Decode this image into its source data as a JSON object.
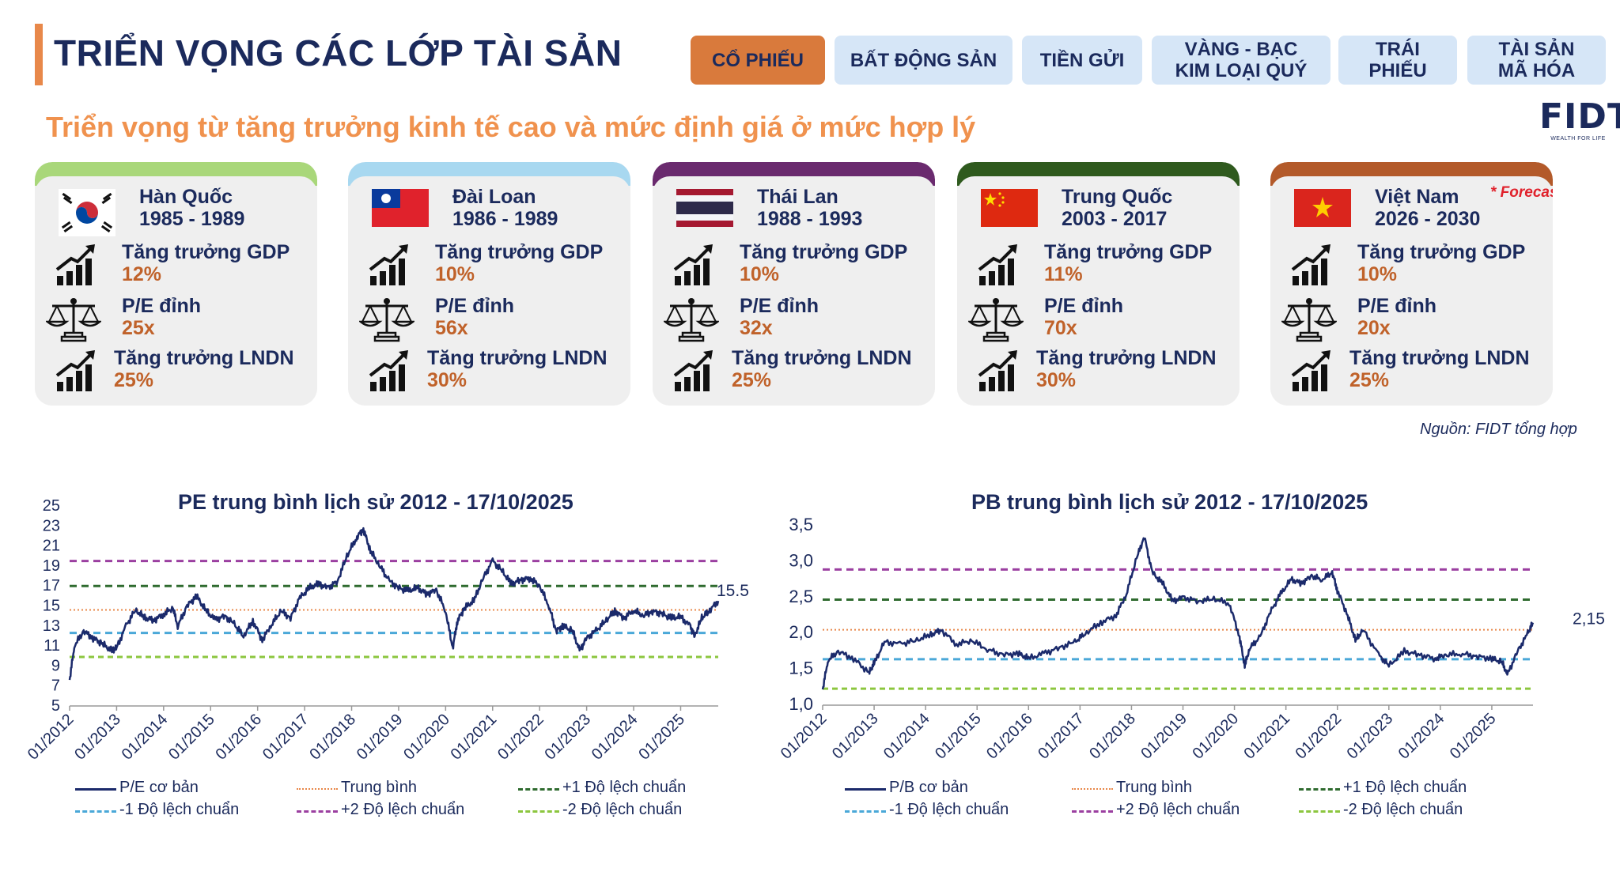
{
  "page": {
    "title": "TRIỂN VỌNG CÁC LỚP TÀI SẢN",
    "subtitle": "Triển vọng từ tăng trưởng kinh tế cao và mức định giá ở mức hợp lý",
    "source": "Nguồn: FIDT tổng hợp"
  },
  "logo": {
    "mark": "FIDT",
    "tagline": "WEALTH FOR LIFE"
  },
  "tabs": [
    {
      "label": "CỔ PHIẾU",
      "active": true
    },
    {
      "label": "BẤT ĐỘNG SẢN",
      "active": false
    },
    {
      "label": "TIỀN GỬI",
      "active": false
    },
    {
      "label": "VÀNG - BẠC\nKIM LOẠI QUÝ",
      "active": false
    },
    {
      "label": "TRÁI\nPHIẾU",
      "active": false
    },
    {
      "label": "TÀI SẢN\nMÃ HÓA",
      "active": false
    }
  ],
  "metric_labels": {
    "gdp": "Tăng trưởng GDP",
    "pe": "P/E đỉnh",
    "profit": "Tăng trưởng LNDN"
  },
  "countries": [
    {
      "name": "Hàn Quốc",
      "years": "1985 - 1989",
      "gdp": "12%",
      "pe": "25x",
      "profit": "25%",
      "cap_color": "#a9d77a",
      "flag": "korea-flag-icon",
      "forecast": ""
    },
    {
      "name": "Đài Loan",
      "years": "1986 - 1989",
      "gdp": "10%",
      "pe": "56x",
      "profit": "30%",
      "cap_color": "#a8d8f0",
      "flag": "taiwan-flag-icon",
      "forecast": ""
    },
    {
      "name": "Thái Lan",
      "years": "1988 - 1993",
      "gdp": "10%",
      "pe": "32x",
      "profit": "25%",
      "cap_color": "#6a2a6e",
      "flag": "thailand-flag-icon",
      "forecast": ""
    },
    {
      "name": "Trung Quốc",
      "years": "2003 - 2017",
      "gdp": "11%",
      "pe": "70x",
      "profit": "30%",
      "cap_color": "#2f5a1e",
      "flag": "china-flag-icon",
      "forecast": ""
    },
    {
      "name": "Việt Nam",
      "years": "2026 - 2030",
      "gdp": "10%",
      "pe": "20x",
      "profit": "25%",
      "cap_color": "#b35a2a",
      "flag": "vietnam-flag-icon",
      "forecast": "* Forecast"
    }
  ],
  "chart_data": [
    {
      "type": "line",
      "title": "PE trung bình lịch sử 2012 - 17/10/2025",
      "ylim": [
        5,
        25
      ],
      "yticks": [
        5,
        7,
        9,
        11,
        13,
        15,
        17,
        19,
        21,
        23,
        25
      ],
      "ytick_labels": [
        "5",
        "7",
        "9",
        "11",
        "13",
        "15",
        "17",
        "19",
        "21",
        "23",
        "25"
      ],
      "xlim": [
        2012.0,
        2025.8
      ],
      "xticks": [
        "01/2012",
        "01/2013",
        "01/2014",
        "01/2015",
        "01/2016",
        "01/2017",
        "01/2018",
        "01/2019",
        "01/2020",
        "01/2021",
        "01/2022",
        "01/2023",
        "01/2024",
        "01/2025"
      ],
      "end_label": "15.5",
      "series": [
        {
          "name": "P/E cơ bản",
          "color": "#1b2a6b",
          "x": [
            2012.0,
            2012.1,
            2012.3,
            2012.5,
            2012.7,
            2012.9,
            2013.0,
            2013.2,
            2013.4,
            2013.6,
            2013.8,
            2014.0,
            2014.2,
            2014.3,
            2014.5,
            2014.7,
            2014.9,
            2015.1,
            2015.3,
            2015.5,
            2015.7,
            2015.9,
            2016.1,
            2016.3,
            2016.5,
            2016.7,
            2016.9,
            2017.1,
            2017.3,
            2017.5,
            2017.7,
            2017.9,
            2018.1,
            2018.25,
            2018.4,
            2018.6,
            2018.8,
            2019.0,
            2019.2,
            2019.4,
            2019.6,
            2019.8,
            2020.0,
            2020.15,
            2020.25,
            2020.4,
            2020.6,
            2020.8,
            2021.0,
            2021.2,
            2021.4,
            2021.6,
            2021.8,
            2022.0,
            2022.2,
            2022.35,
            2022.5,
            2022.7,
            2022.85,
            2023.0,
            2023.2,
            2023.4,
            2023.6,
            2023.8,
            2024.0,
            2024.2,
            2024.4,
            2024.6,
            2024.8,
            2025.0,
            2025.2,
            2025.3,
            2025.45,
            2025.6,
            2025.8
          ],
          "y": [
            7.6,
            11.0,
            12.5,
            11.8,
            11.2,
            10.5,
            10.8,
            13.0,
            14.6,
            13.8,
            13.6,
            14.2,
            14.8,
            13.0,
            15.0,
            16.0,
            14.5,
            13.6,
            14.0,
            13.2,
            12.0,
            13.5,
            11.6,
            13.2,
            14.5,
            13.8,
            15.8,
            16.8,
            17.2,
            16.8,
            17.5,
            20.0,
            21.8,
            22.7,
            20.5,
            19.0,
            17.5,
            16.8,
            16.5,
            16.8,
            16.2,
            16.6,
            14.5,
            10.8,
            13.5,
            14.8,
            15.5,
            17.8,
            19.5,
            18.5,
            17.2,
            17.6,
            17.8,
            17.0,
            15.0,
            12.5,
            13.0,
            12.5,
            10.5,
            11.8,
            12.5,
            13.5,
            14.5,
            13.8,
            14.6,
            14.0,
            14.5,
            14.2,
            13.8,
            13.9,
            13.0,
            12.0,
            13.8,
            14.5,
            15.5
          ]
        },
        {
          "name": "Trung bình",
          "color": "#e8884a",
          "value": 14.6
        },
        {
          "name": "+1 Độ lệch chuẩn",
          "color": "#2f6b2f",
          "value": 17.0
        },
        {
          "name": "-1 Độ lệch chuẩn",
          "color": "#4aa8d8",
          "value": 12.3
        },
        {
          "name": "+2 Độ lệch chuẩn",
          "color": "#9b3fa0",
          "value": 19.5
        },
        {
          "name": "-2 Độ lệch chuẩn",
          "color": "#8cc63f",
          "value": 9.9
        }
      ]
    },
    {
      "type": "line",
      "title": "PB trung bình lịch sử 2012 - 17/10/2025",
      "ylim": [
        1.0,
        3.5
      ],
      "yticks": [
        1.0,
        1.5,
        2.0,
        2.5,
        3.0,
        3.5
      ],
      "ytick_labels": [
        "1,0",
        "1,5",
        "2,0",
        "2,5",
        "3,0",
        "3,5"
      ],
      "xlim": [
        2012.0,
        2025.8
      ],
      "xticks": [
        "01/2012",
        "01/2013",
        "01/2014",
        "01/2015",
        "01/2016",
        "01/2017",
        "01/2018",
        "01/2019",
        "01/2020",
        "01/2021",
        "01/2022",
        "01/2023",
        "01/2024",
        "01/2025"
      ],
      "end_label": "2,15",
      "series": [
        {
          "name": "P/B cơ bản",
          "color": "#1b2a6b",
          "x": [
            2012.0,
            2012.1,
            2012.3,
            2012.6,
            2012.9,
            2013.0,
            2013.2,
            2013.5,
            2013.8,
            2014.1,
            2014.3,
            2014.6,
            2014.9,
            2015.2,
            2015.5,
            2015.8,
            2016.0,
            2016.3,
            2016.6,
            2016.9,
            2017.1,
            2017.4,
            2017.7,
            2017.9,
            2018.1,
            2018.25,
            2018.4,
            2018.6,
            2018.8,
            2019.0,
            2019.3,
            2019.6,
            2019.9,
            2020.1,
            2020.2,
            2020.3,
            2020.5,
            2020.7,
            2020.9,
            2021.1,
            2021.3,
            2021.5,
            2021.7,
            2021.9,
            2022.0,
            2022.2,
            2022.35,
            2022.5,
            2022.8,
            2023.0,
            2023.3,
            2023.6,
            2023.9,
            2024.1,
            2024.4,
            2024.7,
            2025.0,
            2025.2,
            2025.3,
            2025.5,
            2025.7,
            2025.8
          ],
          "y": [
            1.22,
            1.62,
            1.75,
            1.65,
            1.45,
            1.58,
            1.88,
            1.85,
            1.9,
            1.98,
            2.05,
            1.85,
            1.9,
            1.78,
            1.7,
            1.72,
            1.65,
            1.72,
            1.8,
            1.88,
            2.0,
            2.15,
            2.25,
            2.55,
            3.05,
            3.35,
            2.85,
            2.7,
            2.45,
            2.5,
            2.45,
            2.48,
            2.42,
            1.95,
            1.55,
            1.8,
            1.95,
            2.3,
            2.55,
            2.75,
            2.7,
            2.8,
            2.75,
            2.85,
            2.6,
            2.25,
            1.9,
            2.05,
            1.7,
            1.55,
            1.75,
            1.7,
            1.65,
            1.7,
            1.72,
            1.68,
            1.65,
            1.6,
            1.42,
            1.75,
            2.0,
            2.15
          ]
        },
        {
          "name": "Trung bình",
          "color": "#e8884a",
          "value": 2.05
        },
        {
          "name": "+1 Độ lệch chuẩn",
          "color": "#2f6b2f",
          "value": 2.47
        },
        {
          "name": "-1 Độ lệch chuẩn",
          "color": "#4aa8d8",
          "value": 1.64
        },
        {
          "name": "+2 Độ lệch chuẩn",
          "color": "#9b3fa0",
          "value": 2.89
        },
        {
          "name": "-2 Độ lệch chuẩn",
          "color": "#8cc63f",
          "value": 1.23
        }
      ]
    }
  ]
}
